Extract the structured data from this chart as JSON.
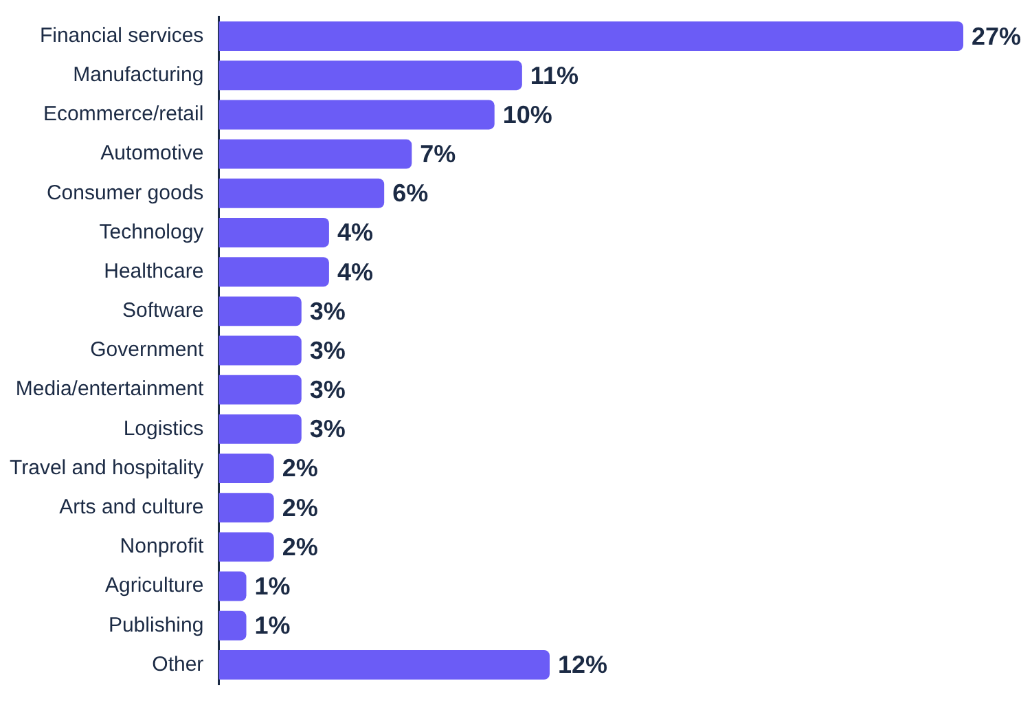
{
  "chart_data": {
    "type": "bar",
    "orientation": "horizontal",
    "categories": [
      "Financial services",
      "Manufacturing",
      "Ecommerce/retail",
      "Automotive",
      "Consumer goods",
      "Technology",
      "Healthcare",
      "Software",
      "Government",
      "Media/entertainment",
      "Logistics",
      "Travel and hospitality",
      "Arts and culture",
      "Nonprofit",
      "Agriculture",
      "Publishing",
      "Other"
    ],
    "values": [
      27,
      11,
      10,
      7,
      6,
      4,
      4,
      3,
      3,
      3,
      3,
      2,
      2,
      2,
      1,
      1,
      12
    ],
    "value_labels": [
      "27%",
      "11%",
      "10%",
      "7%",
      "6%",
      "4%",
      "4%",
      "3%",
      "3%",
      "3%",
      "3%",
      "2%",
      "2%",
      "2%",
      "1%",
      "1%",
      "12%"
    ],
    "color": "#6b5cf6",
    "legend": false
  }
}
